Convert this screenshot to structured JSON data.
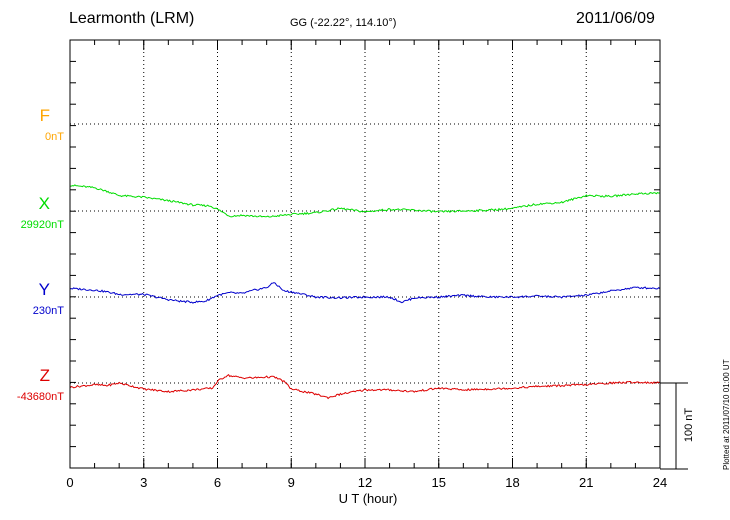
{
  "header": {
    "station": "Learmonth (LRM)",
    "coords": "GG (-22.22°, 114.10°)",
    "date": "2011/06/09"
  },
  "plotted_note": "Plotted at 2011/07/10 01:00 UT",
  "colors": {
    "F": "#ffa500",
    "X": "#00dd00",
    "Y": "#0000cc",
    "Z": "#dd0000"
  },
  "chart_data": {
    "type": "line",
    "xlabel": "U T (hour)",
    "xlim": [
      0,
      24
    ],
    "xticks": [
      0,
      3,
      6,
      9,
      12,
      15,
      18,
      21,
      24
    ],
    "scale_bar": {
      "label": "100 nT",
      "value_nT": 100
    },
    "components": [
      {
        "name": "F",
        "baseline_label": "0nT",
        "values": []
      },
      {
        "name": "X",
        "baseline_label": "29920nT",
        "x": [
          0,
          1,
          1.5,
          2,
          3,
          4,
          5,
          5.7,
          6,
          6.5,
          7,
          8,
          9,
          10,
          11,
          12,
          13,
          14,
          15,
          16,
          17,
          18,
          19,
          20,
          21,
          22,
          23,
          24
        ],
        "values": [
          30,
          27,
          23,
          18,
          16,
          12,
          7,
          6,
          2,
          -6,
          -5,
          -7,
          -4,
          -2,
          3,
          -1,
          2,
          1,
          -1,
          0,
          1,
          3,
          8,
          10,
          18,
          17,
          20,
          21
        ]
      },
      {
        "name": "Y",
        "baseline_label": "230nT",
        "x": [
          0,
          1,
          1.5,
          2,
          3,
          4,
          4.5,
          5,
          5.5,
          6,
          6.5,
          7,
          7.5,
          8,
          8.3,
          8.7,
          9,
          10,
          11,
          12,
          13,
          13.5,
          14,
          15,
          16,
          17,
          18,
          19,
          20,
          21,
          22,
          23,
          24
        ],
        "values": [
          10,
          8,
          6,
          3,
          3,
          -3,
          -5,
          -6,
          -5,
          2,
          5,
          4,
          8,
          11,
          17,
          7,
          6,
          0,
          -1,
          0,
          0,
          -6,
          -1,
          0,
          2,
          0,
          0,
          1,
          0,
          2,
          7,
          11,
          10
        ]
      },
      {
        "name": "Z",
        "baseline_label": "-43680nT",
        "x": [
          0,
          1,
          1.5,
          2,
          3,
          4,
          5,
          5.8,
          6,
          6.4,
          7,
          7.5,
          8,
          8.3,
          8.7,
          9,
          10,
          10.5,
          11,
          12,
          13,
          14,
          15,
          16,
          17,
          18,
          19,
          20,
          21,
          22,
          23,
          24
        ],
        "values": [
          -5,
          -2,
          -3,
          0,
          -7,
          -10,
          -8,
          -6,
          2,
          9,
          6,
          6,
          7,
          7,
          2,
          -7,
          -13,
          -17,
          -13,
          -8,
          -8,
          -10,
          -6,
          -8,
          -7,
          -6,
          -4,
          -3,
          -2,
          0,
          1,
          0
        ]
      }
    ]
  }
}
